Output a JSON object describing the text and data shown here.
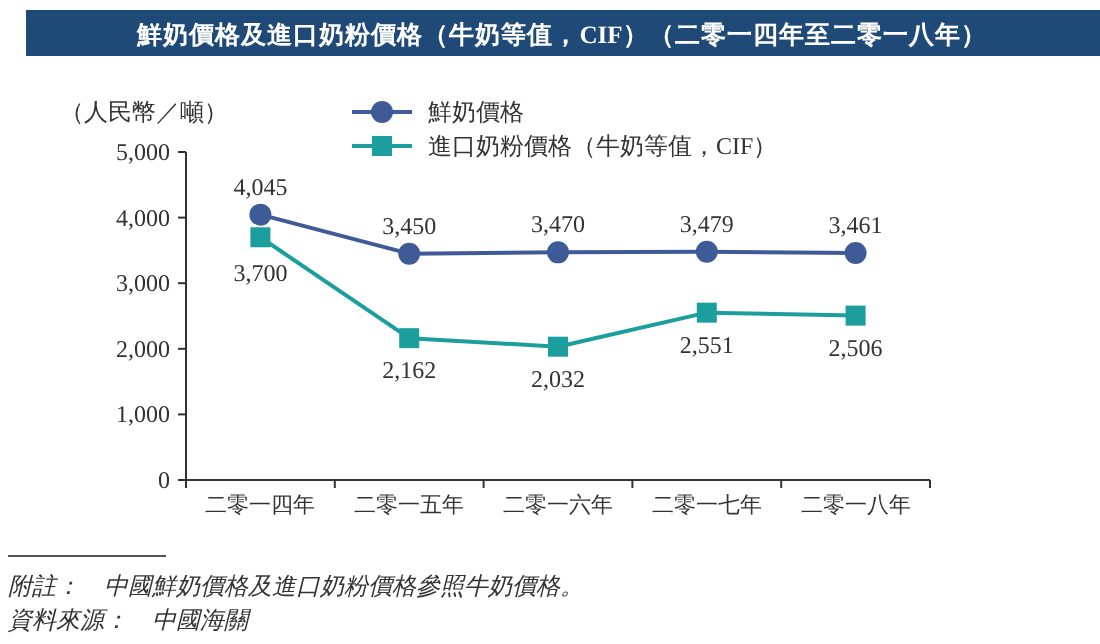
{
  "chart_data": {
    "type": "line",
    "title": "鮮奶價格及進口奶粉價格（牛奶等值，CIF）（二零一四年至二零一八年）",
    "ylabel": "（人民幣／噸）",
    "categories": [
      "二零一四年",
      "二零一五年",
      "二零一六年",
      "二零一七年",
      "二零一八年"
    ],
    "series": [
      {
        "name": "鮮奶價格",
        "color": "#3f5b97",
        "marker": "circle",
        "values": [
          4045,
          3450,
          3470,
          3479,
          3461
        ],
        "value_labels": [
          "4,045",
          "3,450",
          "3,470",
          "3,479",
          "3,461"
        ]
      },
      {
        "name": "進口奶粉價格（牛奶等值，CIF）",
        "color": "#1d9e9e",
        "marker": "square",
        "values": [
          3700,
          2162,
          2032,
          2551,
          2506
        ],
        "value_labels": [
          "3,700",
          "2,162",
          "2,032",
          "2,551",
          "2,506"
        ]
      }
    ],
    "ylim": [
      0,
      5000
    ],
    "yticks": [
      {
        "value": 0,
        "label": "0"
      },
      {
        "value": 1000,
        "label": "1,000"
      },
      {
        "value": 2000,
        "label": "2,000"
      },
      {
        "value": 3000,
        "label": "3,000"
      },
      {
        "value": 4000,
        "label": "4,000"
      },
      {
        "value": 5000,
        "label": "5,000"
      }
    ],
    "legend": "top",
    "annotations": [
      "附註：　中國鮮奶價格及進口奶粉價格參照牛奶價格。",
      "資料來源：　中國海關"
    ]
  }
}
